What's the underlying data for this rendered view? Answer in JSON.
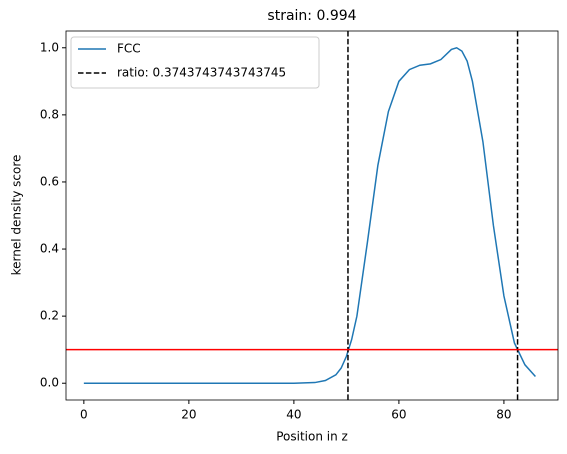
{
  "chart_data": {
    "type": "line",
    "title": "strain: 0.994",
    "x_label": "Position in z",
    "y_label": "kernel density score",
    "x": [
      0,
      5,
      10,
      15,
      20,
      25,
      30,
      35,
      40,
      44,
      46,
      48,
      49,
      50,
      51,
      52,
      54,
      56,
      58,
      60,
      62,
      64,
      66,
      68,
      70,
      71,
      72,
      73,
      74,
      76,
      78,
      80,
      82,
      84,
      86
    ],
    "series": [
      {
        "name": "FCC",
        "color": "#1f77b4",
        "values": [
          0,
          0,
          0,
          0,
          0,
          0,
          0,
          0,
          0,
          0.002,
          0.008,
          0.025,
          0.045,
          0.08,
          0.13,
          0.2,
          0.42,
          0.65,
          0.81,
          0.9,
          0.935,
          0.948,
          0.952,
          0.965,
          0.995,
          1.0,
          0.99,
          0.96,
          0.9,
          0.72,
          0.47,
          0.26,
          0.12,
          0.055,
          0.02
        ]
      }
    ],
    "vlines": {
      "name": "ratio: 0.3743743743743745",
      "color": "#000000",
      "values": [
        50.3,
        82.6
      ]
    },
    "hline": {
      "color": "#ff0000",
      "value": 0.1
    },
    "xlim": [
      -3.4,
      90.3
    ],
    "ylim": [
      -0.05,
      1.05
    ],
    "xticks": [
      0,
      20,
      40,
      60,
      80
    ],
    "yticks": [
      {
        "value": 0,
        "label": "0.0"
      },
      0.2,
      0.4,
      0.6,
      0.8,
      {
        "value": 1,
        "label": "1.0"
      }
    ],
    "legend": "upper left"
  }
}
